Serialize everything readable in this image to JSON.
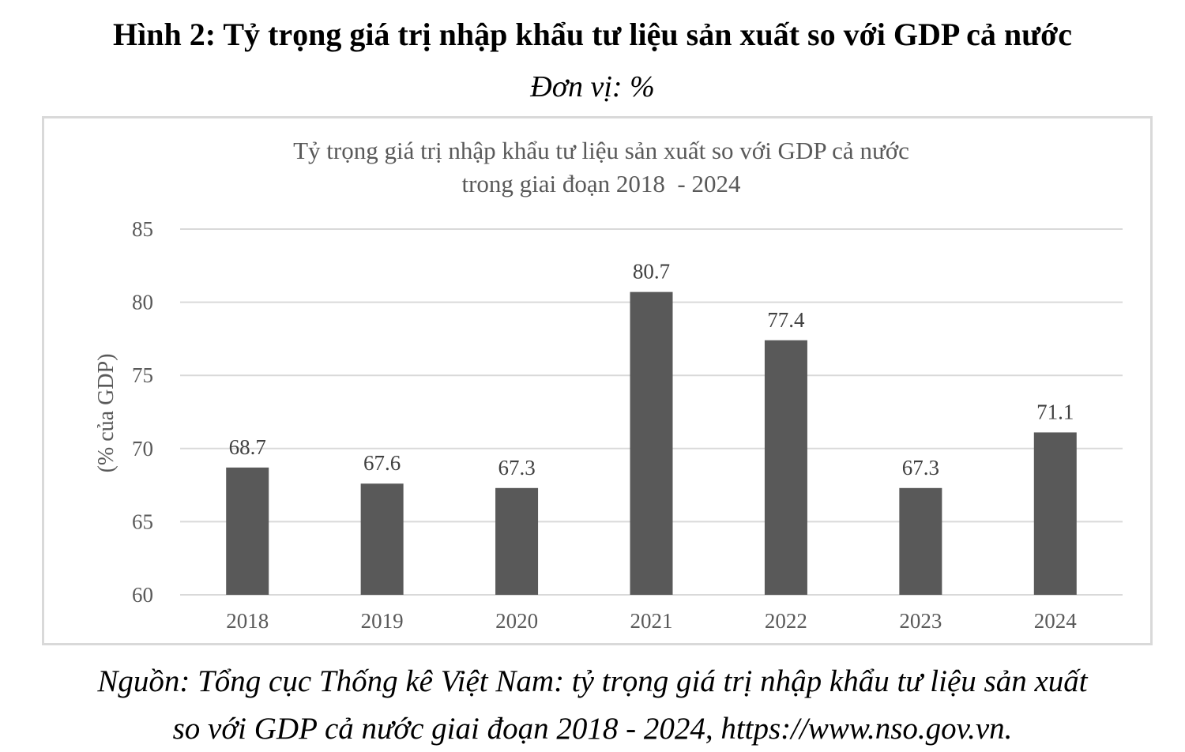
{
  "figure": {
    "title": "Hình 2: Tỷ trọng giá trị nhập khẩu tư liệu sản xuất so với GDP cả nước",
    "unit": "Đơn vị: %",
    "source_line1": "Nguồn: Tổng cục Thống kê Việt Nam: tỷ trọng giá trị nhập khẩu tư liệu sản xuất",
    "source_line2": "so với GDP cả nước giai đoạn 2018 - 2024, https://www.nso.gov.vn."
  },
  "chart_data": {
    "type": "bar",
    "title": "Tỷ trọng giá trị nhập khẩu tư liệu sản xuất so với GDP cả nước",
    "subtitle": "trong giai đoạn 2018  - 2024",
    "xlabel": "",
    "ylabel": "(% của GDP)",
    "categories": [
      "2018",
      "2019",
      "2020",
      "2021",
      "2022",
      "2023",
      "2024"
    ],
    "values": [
      68.7,
      67.6,
      67.3,
      80.7,
      77.4,
      67.3,
      71.1
    ],
    "value_labels": [
      "68.7",
      "67.6",
      "67.3",
      "80.7",
      "77.4",
      "67.3",
      "71.1"
    ],
    "ylim": [
      60,
      85
    ],
    "yticks": [
      "60",
      "65",
      "70",
      "75",
      "80",
      "85"
    ],
    "grid": true,
    "legend": "none",
    "bar_color": "#595959",
    "grid_color": "#d9d9d9",
    "text_color": "#595959"
  }
}
